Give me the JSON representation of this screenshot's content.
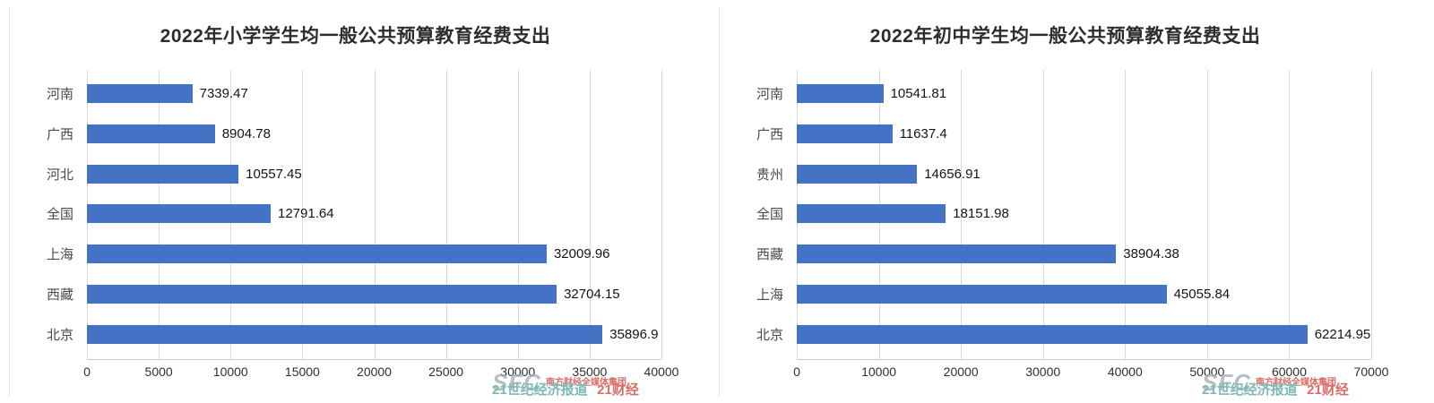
{
  "watermark": {
    "logo": "SFC",
    "org": "南方财经全媒体集团",
    "line2_left": "21世纪经济报道",
    "line2_right": "21财经"
  },
  "chart_data": [
    {
      "type": "bar",
      "orientation": "horizontal",
      "title": "2022年小学学生均一般公共预算教育经费支出",
      "categories": [
        "河南",
        "广西",
        "河北",
        "全国",
        "上海",
        "西藏",
        "北京"
      ],
      "values": [
        7339.47,
        8904.78,
        10557.45,
        12791.64,
        32009.96,
        32704.15,
        35896.9
      ],
      "value_labels": [
        "7339.47",
        "8904.78",
        "10557.45",
        "12791.64",
        "32009.96",
        "32704.15",
        "35896.9"
      ],
      "xlim": [
        0,
        40000
      ],
      "xticks": [
        0,
        5000,
        10000,
        15000,
        20000,
        25000,
        30000,
        35000,
        40000
      ],
      "bar_color": "#4472C4",
      "grid": true,
      "legend": false
    },
    {
      "type": "bar",
      "orientation": "horizontal",
      "title": "2022年初中学生均一般公共预算教育经费支出",
      "categories": [
        "河南",
        "广西",
        "贵州",
        "全国",
        "西藏",
        "上海",
        "北京"
      ],
      "values": [
        10541.81,
        11637.4,
        14656.91,
        18151.98,
        38904.38,
        45055.84,
        62214.95
      ],
      "value_labels": [
        "10541.81",
        "11637.4",
        "14656.91",
        "18151.98",
        "38904.38",
        "45055.84",
        "62214.95"
      ],
      "xlim": [
        0,
        70000
      ],
      "xticks": [
        0,
        10000,
        20000,
        30000,
        40000,
        50000,
        60000,
        70000
      ],
      "bar_color": "#4472C4",
      "grid": true,
      "legend": false
    }
  ]
}
